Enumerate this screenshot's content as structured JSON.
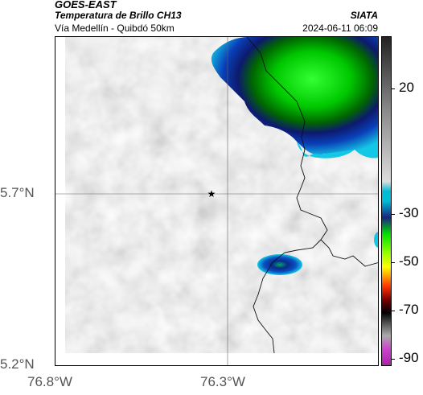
{
  "header": {
    "satellite": "GOES-EAST",
    "product": "Temperatura de Brillo CH13",
    "route": "Vía Medellín - Quibdó 50km",
    "organization": "SIATA",
    "timestamp": "2024-06-11 06:09"
  },
  "axes": {
    "lat_labels": [
      "5.7°N",
      "5.2°N"
    ],
    "lon_labels": [
      "76.8°W",
      "76.3°W"
    ]
  },
  "colorbar": {
    "labels": [
      "20",
      "-30",
      "-50",
      "-70",
      "-90"
    ],
    "colors": [
      "#222222",
      "#dddddd",
      "#00bcd4",
      "#1a237e",
      "#00e000",
      "#ffff00",
      "#ff3300",
      "#000000",
      "#aaaaaa",
      "#cc44cc"
    ]
  },
  "markers": [
    {
      "name": "reference-star",
      "symbol": "★"
    }
  ]
}
